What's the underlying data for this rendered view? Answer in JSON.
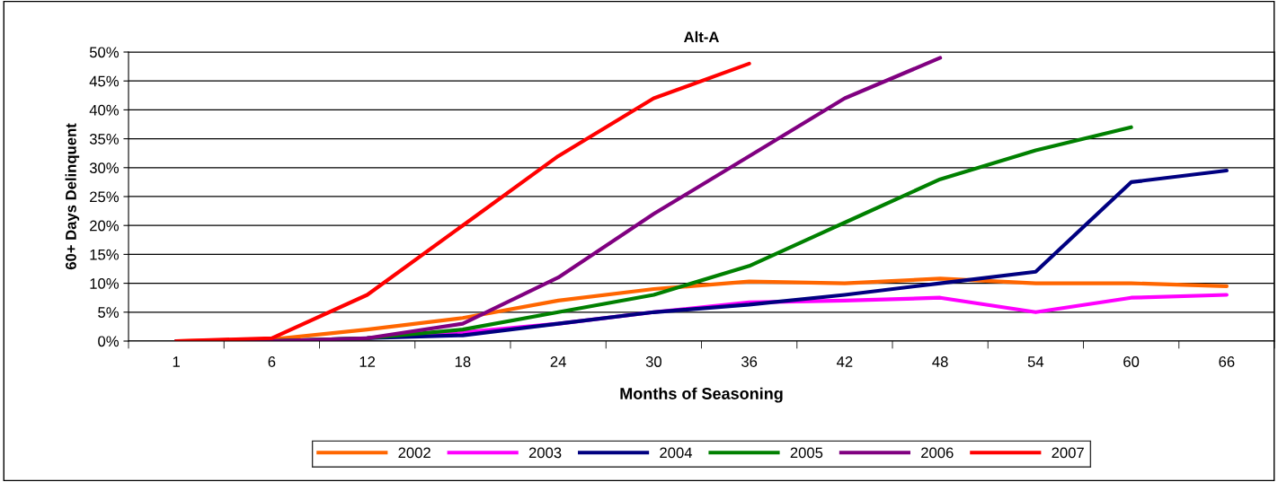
{
  "chart_data": {
    "type": "line",
    "title": "Alt-A",
    "xlabel": "Months of Seasoning",
    "ylabel": "60+ Days Delinquent",
    "categories": [
      "1",
      "6",
      "12",
      "18",
      "24",
      "30",
      "36",
      "42",
      "48",
      "54",
      "60",
      "66"
    ],
    "ylim": [
      0,
      50
    ],
    "yticks": [
      {
        "value": 0,
        "label": "0%"
      },
      {
        "value": 5,
        "label": "5%"
      },
      {
        "value": 10,
        "label": "10%"
      },
      {
        "value": 15,
        "label": "15%"
      },
      {
        "value": 20,
        "label": "20%"
      },
      {
        "value": 25,
        "label": "25%"
      },
      {
        "value": 30,
        "label": "30%"
      },
      {
        "value": 35,
        "label": "35%"
      },
      {
        "value": 40,
        "label": "40%"
      },
      {
        "value": 45,
        "label": "45%"
      },
      {
        "value": 50,
        "label": "50%"
      }
    ],
    "grid": "y",
    "legend": "bottom",
    "marker": "none",
    "line_style": "solid",
    "series": [
      {
        "name": "2002",
        "color": "#ff6600",
        "values": [
          0,
          0.3,
          2,
          4,
          7,
          9,
          10.3,
          10,
          10.8,
          10,
          10,
          9.5
        ]
      },
      {
        "name": "2003",
        "color": "#ff00ff",
        "values": [
          null,
          null,
          0.5,
          1.5,
          3,
          5,
          6.7,
          7,
          7.5,
          5,
          7.5,
          8
        ]
      },
      {
        "name": "2004",
        "color": "#000080",
        "values": [
          0,
          0,
          0.5,
          1,
          3,
          5,
          6.3,
          8,
          10,
          12,
          27.5,
          29.5
        ]
      },
      {
        "name": "2005",
        "color": "#008000",
        "values": [
          0,
          0,
          0.5,
          2,
          5,
          8,
          13,
          20.5,
          28,
          33,
          37,
          null
        ]
      },
      {
        "name": "2006",
        "color": "#800080",
        "values": [
          0,
          0,
          0.5,
          3,
          11,
          22,
          32,
          42,
          49,
          null,
          null,
          null
        ]
      },
      {
        "name": "2007",
        "color": "#ff0000",
        "values": [
          0,
          0.5,
          8,
          20,
          32,
          42,
          48,
          null,
          null,
          null,
          null,
          null
        ]
      }
    ]
  }
}
